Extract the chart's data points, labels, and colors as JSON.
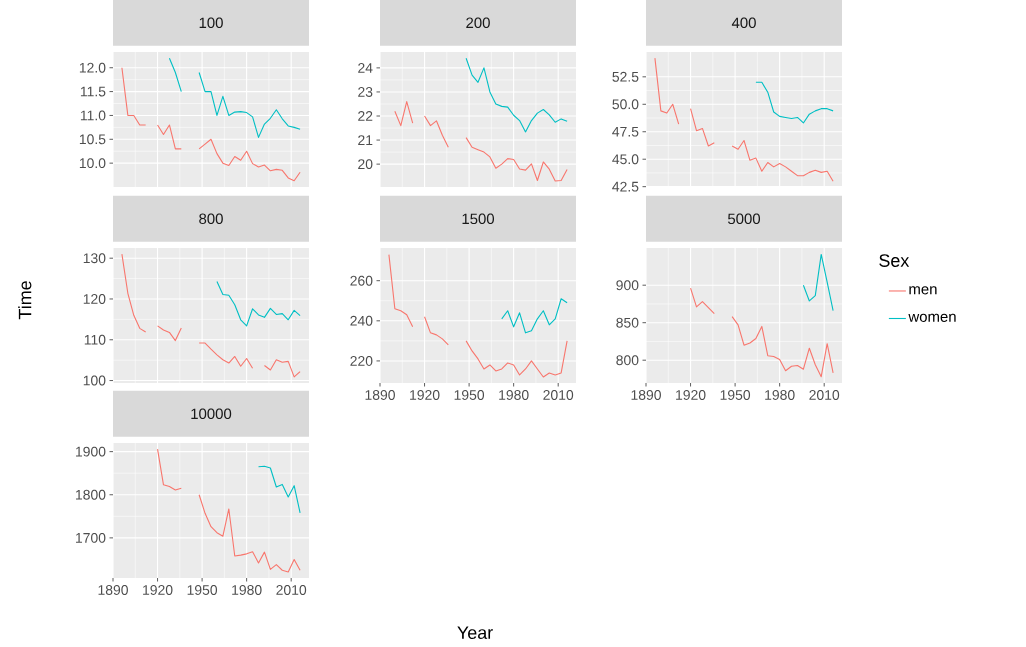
{
  "chart_data": [
    {
      "type": "line",
      "title": "100",
      "x": [
        1896,
        1900,
        1904,
        1908,
        1912,
        1916,
        1920,
        1924,
        1928,
        1932,
        1936,
        1940,
        1944,
        1948,
        1952,
        1956,
        1960,
        1964,
        1968,
        1972,
        1976,
        1980,
        1984,
        1988,
        1992,
        1996,
        2000,
        2004,
        2008,
        2012,
        2016
      ],
      "xlim": [
        1890,
        2022
      ],
      "xticks": [
        1890,
        1920,
        1950,
        1980,
        2010
      ],
      "ylim": [
        9.5,
        12.33
      ],
      "yticks": [
        {
          "value": 10,
          "label": "10.0"
        },
        10.5,
        {
          "value": 11,
          "label": "11.0"
        },
        11.5,
        {
          "value": 12,
          "label": "12.0"
        }
      ],
      "grid": true,
      "tick_labels": "y",
      "series": [
        {
          "color": "#f8766d",
          "values": [
            12.0,
            11.0,
            11.0,
            10.8,
            10.8,
            null,
            10.8,
            10.6,
            10.8,
            10.3,
            10.3,
            null,
            null,
            10.3,
            10.4,
            10.5,
            10.2,
            10.0,
            9.95,
            10.14,
            10.06,
            10.25,
            9.99,
            9.92,
            9.96,
            9.84,
            9.87,
            9.85,
            9.69,
            9.63,
            9.81
          ]
        },
        {
          "color": "#00bfc4",
          "values": [
            null,
            null,
            null,
            null,
            null,
            null,
            null,
            null,
            12.2,
            11.9,
            11.5,
            null,
            null,
            11.9,
            11.5,
            11.5,
            11.0,
            11.4,
            11.0,
            11.07,
            11.08,
            11.06,
            10.97,
            10.54,
            10.82,
            10.94,
            11.12,
            10.93,
            10.78,
            10.75,
            10.71
          ]
        }
      ]
    },
    {
      "type": "line",
      "title": "200",
      "x": [
        1900,
        1904,
        1908,
        1912,
        1916,
        1920,
        1924,
        1928,
        1932,
        1936,
        1940,
        1944,
        1948,
        1952,
        1956,
        1960,
        1964,
        1968,
        1972,
        1976,
        1980,
        1984,
        1988,
        1992,
        1996,
        2000,
        2004,
        2008,
        2012,
        2016
      ],
      "xlim": [
        1890,
        2022
      ],
      "xticks": [
        1890,
        1920,
        1950,
        1980,
        2010
      ],
      "ylim": [
        19.05,
        24.66
      ],
      "yticks": [
        20,
        21,
        22,
        23,
        24
      ],
      "grid": true,
      "tick_labels": "y",
      "series": [
        {
          "color": "#f8766d",
          "values": [
            22.2,
            21.6,
            22.6,
            21.7,
            null,
            22.0,
            21.6,
            21.8,
            21.2,
            20.7,
            null,
            null,
            21.1,
            20.7,
            20.6,
            20.5,
            20.3,
            19.83,
            20.0,
            20.23,
            20.19,
            19.8,
            19.75,
            20.01,
            19.32,
            20.09,
            19.79,
            19.3,
            19.32,
            19.78
          ]
        },
        {
          "color": "#00bfc4",
          "values": [
            null,
            null,
            null,
            null,
            null,
            null,
            null,
            null,
            null,
            null,
            null,
            null,
            24.4,
            23.7,
            23.4,
            24.0,
            23.0,
            22.5,
            22.4,
            22.37,
            22.03,
            21.81,
            21.34,
            21.81,
            22.12,
            22.27,
            22.05,
            21.74,
            21.88,
            21.78
          ]
        }
      ]
    },
    {
      "type": "line",
      "title": "400",
      "x": [
        1896,
        1900,
        1904,
        1908,
        1912,
        1916,
        1920,
        1924,
        1928,
        1932,
        1936,
        1940,
        1944,
        1948,
        1952,
        1956,
        1960,
        1964,
        1968,
        1972,
        1976,
        1980,
        1984,
        1988,
        1992,
        1996,
        2000,
        2004,
        2008,
        2012,
        2016
      ],
      "xlim": [
        1890,
        2022
      ],
      "xticks": [
        1890,
        1920,
        1950,
        1980,
        2010
      ],
      "ylim": [
        42.47,
        54.76
      ],
      "yticks": [
        42.5,
        {
          "value": 45,
          "label": "45.0"
        },
        47.5,
        {
          "value": 50,
          "label": "50.0"
        },
        52.5
      ],
      "grid": true,
      "tick_labels": "y",
      "series": [
        {
          "color": "#f8766d",
          "values": [
            54.2,
            49.4,
            49.2,
            50.0,
            48.2,
            null,
            49.6,
            47.6,
            47.8,
            46.2,
            46.5,
            null,
            null,
            46.2,
            45.9,
            46.7,
            44.9,
            45.1,
            43.9,
            44.7,
            44.3,
            44.6,
            44.3,
            43.9,
            43.5,
            43.5,
            43.8,
            44.0,
            43.8,
            43.9,
            43.0
          ]
        },
        {
          "color": "#00bfc4",
          "values": [
            null,
            null,
            null,
            null,
            null,
            null,
            null,
            null,
            null,
            null,
            null,
            null,
            null,
            null,
            null,
            null,
            null,
            52.0,
            52.0,
            51.1,
            49.3,
            48.9,
            48.8,
            48.7,
            48.8,
            48.3,
            49.1,
            49.4,
            49.6,
            49.6,
            49.4
          ]
        }
      ]
    },
    {
      "type": "line",
      "title": "800",
      "ylabel": "Time",
      "x": [
        1896,
        1900,
        1904,
        1908,
        1912,
        1916,
        1920,
        1924,
        1928,
        1932,
        1936,
        1940,
        1944,
        1948,
        1952,
        1956,
        1960,
        1964,
        1968,
        1972,
        1976,
        1980,
        1984,
        1988,
        1992,
        1996,
        2000,
        2004,
        2008,
        2012,
        2016
      ],
      "xlim": [
        1890,
        2022
      ],
      "xticks": [
        1890,
        1920,
        1950,
        1980,
        2010
      ],
      "ylim": [
        99.4,
        132.5
      ],
      "yticks": [
        100,
        110,
        120,
        130
      ],
      "grid": true,
      "tick_labels": "y",
      "series": [
        {
          "color": "#f8766d",
          "values": [
            131.0,
            121.4,
            116.0,
            112.8,
            111.9,
            null,
            113.4,
            112.4,
            111.8,
            109.8,
            112.9,
            null,
            null,
            109.2,
            109.2,
            107.7,
            106.3,
            105.1,
            104.3,
            105.9,
            103.5,
            105.4,
            103.0,
            null,
            103.7,
            102.6,
            105.1,
            104.5,
            104.7,
            100.9,
            102.2
          ]
        },
        {
          "color": "#00bfc4",
          "values": [
            null,
            null,
            null,
            null,
            null,
            null,
            null,
            null,
            null,
            null,
            null,
            null,
            null,
            null,
            null,
            null,
            124.3,
            121.1,
            120.9,
            118.6,
            114.9,
            113.4,
            117.6,
            116.1,
            115.5,
            117.7,
            116.2,
            116.4,
            114.9,
            117.2,
            115.9
          ]
        }
      ]
    },
    {
      "type": "line",
      "title": "1500",
      "xlabel": "Year",
      "x": [
        1896,
        1900,
        1904,
        1908,
        1912,
        1916,
        1920,
        1924,
        1928,
        1932,
        1936,
        1940,
        1944,
        1948,
        1952,
        1956,
        1960,
        1964,
        1968,
        1972,
        1976,
        1980,
        1984,
        1988,
        1992,
        1996,
        2000,
        2004,
        2008,
        2012,
        2016
      ],
      "xlim": [
        1890,
        2022
      ],
      "xticks": [
        1890,
        1920,
        1950,
        1980,
        2010
      ],
      "ylim": [
        209.0,
        276.3
      ],
      "yticks": [
        220,
        240,
        260
      ],
      "grid": true,
      "series": [
        {
          "color": "#f8766d",
          "values": [
            273,
            246,
            245,
            243,
            237,
            null,
            242,
            234,
            233,
            231,
            228,
            null,
            null,
            230,
            225,
            221,
            216,
            218,
            215,
            216,
            219,
            218,
            213,
            216,
            220,
            216,
            212,
            214,
            213,
            214,
            230
          ]
        },
        {
          "color": "#00bfc4",
          "values": [
            null,
            null,
            null,
            null,
            null,
            null,
            null,
            null,
            null,
            null,
            null,
            null,
            null,
            null,
            null,
            null,
            null,
            null,
            null,
            241,
            245,
            237,
            244,
            234,
            235,
            241,
            245,
            238,
            241,
            251,
            249
          ]
        }
      ]
    },
    {
      "type": "line",
      "title": "5000",
      "legend": "right",
      "legend_title": "Sex",
      "x": [
        1920,
        1924,
        1928,
        1932,
        1936,
        1940,
        1944,
        1948,
        1952,
        1956,
        1960,
        1964,
        1968,
        1972,
        1976,
        1980,
        1984,
        1988,
        1992,
        1996,
        2000,
        2004,
        2008,
        2012,
        2016
      ],
      "xlim": [
        1890,
        2022
      ],
      "xticks": [
        1890,
        1920,
        1950,
        1980,
        2010
      ],
      "ylim": [
        769.6,
        949.6
      ],
      "yticks": [
        800,
        850,
        900
      ],
      "grid": true,
      "series": [
        {
          "name": "men",
          "color": "#f8766d",
          "values": [
            896,
            871,
            878,
            870,
            862,
            null,
            null,
            858,
            847,
            820,
            823,
            829,
            845,
            806,
            805,
            801,
            786,
            792,
            793,
            788,
            816,
            794,
            778,
            822,
            783
          ]
        },
        {
          "name": "women",
          "color": "#00bfc4",
          "values": [
            null,
            null,
            null,
            null,
            null,
            null,
            null,
            null,
            null,
            null,
            null,
            null,
            null,
            null,
            null,
            null,
            null,
            null,
            null,
            900,
            879,
            886,
            941,
            904,
            866
          ]
        }
      ]
    },
    {
      "type": "line",
      "title": "10000",
      "x": [
        1920,
        1924,
        1928,
        1932,
        1936,
        1940,
        1944,
        1948,
        1952,
        1956,
        1960,
        1964,
        1968,
        1972,
        1976,
        1980,
        1984,
        1988,
        1992,
        1996,
        2000,
        2004,
        2008,
        2012,
        2016
      ],
      "xlim": [
        1890,
        2022
      ],
      "xticks": [
        1890,
        1920,
        1950,
        1980,
        2010
      ],
      "ylim": [
        1607,
        1920
      ],
      "yticks": [
        1700,
        1800,
        1900
      ],
      "grid": true,
      "series": [
        {
          "color": "#f8766d",
          "values": [
            1906,
            1823,
            1819,
            1811,
            1815,
            null,
            null,
            1800,
            1757,
            1726,
            1712,
            1704,
            1767,
            1658,
            1660,
            1663,
            1668,
            1642,
            1667,
            1627,
            1638,
            1625,
            1621,
            1650,
            1625
          ]
        },
        {
          "color": "#00bfc4",
          "values": [
            null,
            null,
            null,
            null,
            null,
            null,
            null,
            null,
            null,
            null,
            null,
            null,
            null,
            null,
            null,
            null,
            null,
            1865,
            1866,
            1862,
            1818,
            1824,
            1795,
            1821,
            1758
          ]
        }
      ]
    }
  ]
}
